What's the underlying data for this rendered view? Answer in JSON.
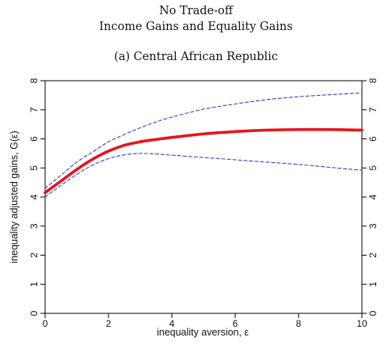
{
  "header": {
    "title_line1": "No Trade-off",
    "title_line2": "Income Gains and Equality Gains",
    "subtitle": "(a) Central African Republic"
  },
  "chart_data": {
    "type": "line",
    "title": "(a) Central African Republic",
    "xlabel": "inequality aversion, ε",
    "ylabel": "inequality adjusted gains, G(ε)",
    "xlim": [
      0,
      10
    ],
    "ylim": [
      0,
      8
    ],
    "xticks": [
      0,
      2,
      4,
      6,
      8,
      10
    ],
    "yticks": [
      0,
      1,
      2,
      3,
      4,
      5,
      6,
      7,
      8
    ],
    "grid": false,
    "legend": "none",
    "series": [
      {
        "role": "estimate",
        "color": "#e8141c",
        "style": "solid",
        "x": [
          0,
          0.5,
          1,
          1.5,
          2,
          2.5,
          3,
          3.5,
          4,
          5,
          6,
          7,
          8,
          9,
          10
        ],
        "y": [
          4.15,
          4.55,
          4.95,
          5.3,
          5.58,
          5.78,
          5.9,
          5.98,
          6.05,
          6.17,
          6.25,
          6.3,
          6.32,
          6.32,
          6.3
        ]
      },
      {
        "role": "upper-band",
        "color": "#3b3bd4",
        "style": "dashed",
        "x": [
          0,
          0.5,
          1,
          1.5,
          2,
          2.5,
          3,
          3.5,
          4,
          5,
          6,
          7,
          8,
          9,
          10
        ],
        "y": [
          4.3,
          4.75,
          5.2,
          5.55,
          5.9,
          6.15,
          6.38,
          6.58,
          6.75,
          7.02,
          7.2,
          7.35,
          7.45,
          7.52,
          7.58
        ]
      },
      {
        "role": "lower-band",
        "color": "#3b3bd4",
        "style": "dashed",
        "x": [
          0,
          0.5,
          1,
          1.5,
          2,
          2.5,
          3,
          3.5,
          4,
          5,
          6,
          7,
          8,
          9,
          10
        ],
        "y": [
          4.0,
          4.4,
          4.78,
          5.1,
          5.32,
          5.45,
          5.5,
          5.48,
          5.44,
          5.36,
          5.28,
          5.2,
          5.12,
          5.02,
          4.92
        ]
      }
    ]
  }
}
